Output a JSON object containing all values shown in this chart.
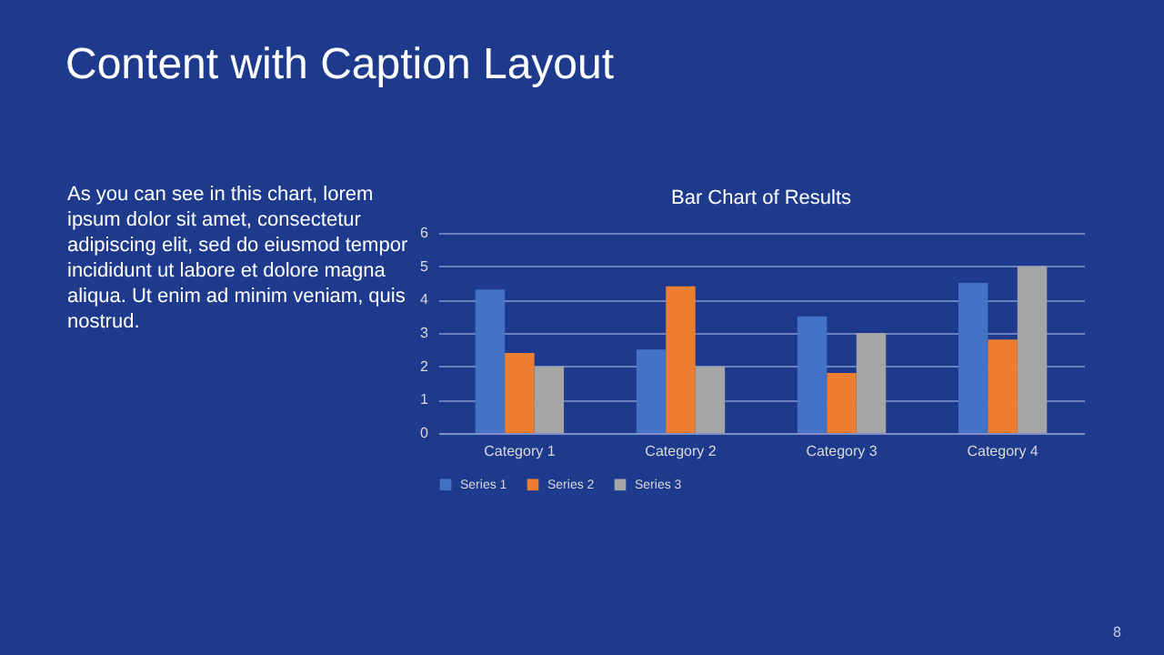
{
  "chart_data": {
    "type": "bar",
    "title": "Bar Chart of Results",
    "annotations": [
      "Content with Caption Layout",
      "As you can see in this chart, lorem ipsum dolor sit amet, consectetur adipiscing elit, sed do eiusmod tempor incididunt ut labore et dolore magna aliqua. Ut enim ad minim veniam, quis nostrud.",
      "8"
    ],
    "categories": [
      "Category 1",
      "Category 2",
      "Category 3",
      "Category 4"
    ],
    "series": [
      {
        "name": "Series 1",
        "color": "#4472c4",
        "values": [
          4.3,
          2.5,
          3.5,
          4.5
        ]
      },
      {
        "name": "Series 2",
        "color": "#ed7d31",
        "values": [
          2.4,
          4.4,
          1.8,
          2.8
        ]
      },
      {
        "name": "Series 3",
        "color": "#a5a5a5",
        "values": [
          2,
          2,
          3,
          5
        ]
      }
    ],
    "ylim": [
      0,
      6
    ],
    "yticks": [
      0,
      1,
      2,
      3,
      4,
      5,
      6
    ],
    "grid": true,
    "legend": "bottom"
  }
}
